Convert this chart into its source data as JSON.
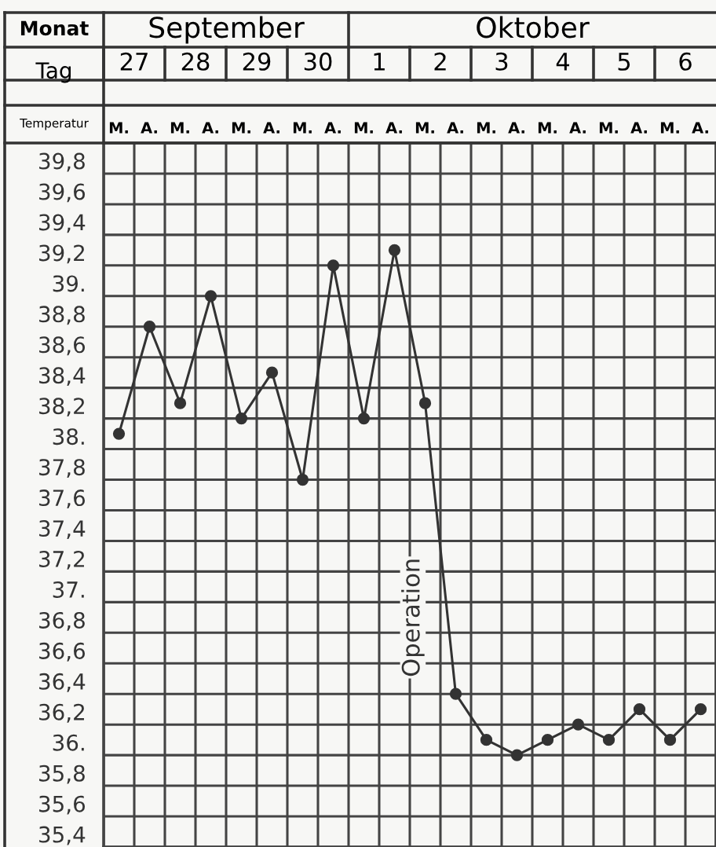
{
  "chart_data": {
    "type": "line",
    "categories": [
      "M.",
      "A.",
      "M.",
      "A.",
      "M.",
      "A.",
      "M.",
      "A.",
      "M.",
      "A.",
      "M.",
      "A.",
      "M.",
      "A.",
      "M.",
      "A.",
      "M.",
      "A.",
      "M.",
      "A."
    ],
    "series": [
      {
        "color": "#333333",
        "values": [
          38.1,
          38.8,
          38.3,
          39.0,
          38.2,
          38.5,
          37.8,
          39.2,
          38.2,
          39.3,
          38.3,
          36.4,
          36.1,
          36.0,
          36.1,
          36.2,
          36.1,
          36.3,
          36.1,
          36.3
        ]
      }
    ],
    "ylim": [
      35.4,
      40.0
    ],
    "yticks": [
      {
        "value": 35.4,
        "label": "35,4"
      },
      {
        "value": 35.6,
        "label": "35,6"
      },
      {
        "value": 35.8,
        "label": "35,8"
      },
      {
        "value": 36,
        "label": "36."
      },
      {
        "value": 36.2,
        "label": "36,2"
      },
      {
        "value": 36.4,
        "label": "36,4"
      },
      {
        "value": 36.6,
        "label": "36,6"
      },
      {
        "value": 36.8,
        "label": "36,8"
      },
      {
        "value": 37,
        "label": "37."
      },
      {
        "value": 37.2,
        "label": "37,2"
      },
      {
        "value": 37.4,
        "label": "37,4"
      },
      {
        "value": 37.6,
        "label": "37,6"
      },
      {
        "value": 37.8,
        "label": "37,8"
      },
      {
        "value": 38,
        "label": "38."
      },
      {
        "value": 38.2,
        "label": "38,2"
      },
      {
        "value": 38.4,
        "label": "38,4"
      },
      {
        "value": 38.6,
        "label": "38,6"
      },
      {
        "value": 38.8,
        "label": "38,8"
      },
      {
        "value": 39,
        "label": "39."
      },
      {
        "value": 39.2,
        "label": "39,2"
      },
      {
        "value": 39.4,
        "label": "39,4"
      },
      {
        "value": 39.6,
        "label": "39,6"
      },
      {
        "value": 39.8,
        "label": "39,8"
      }
    ],
    "grid": true,
    "marker": "circle",
    "line_style": "solid",
    "annotations": [
      "Monat",
      "September",
      "Oktober",
      "Tag",
      "27",
      "28",
      "29",
      "30",
      "1",
      "2",
      "3",
      "4",
      "5",
      "6",
      "Temperatur",
      "Operation"
    ]
  }
}
